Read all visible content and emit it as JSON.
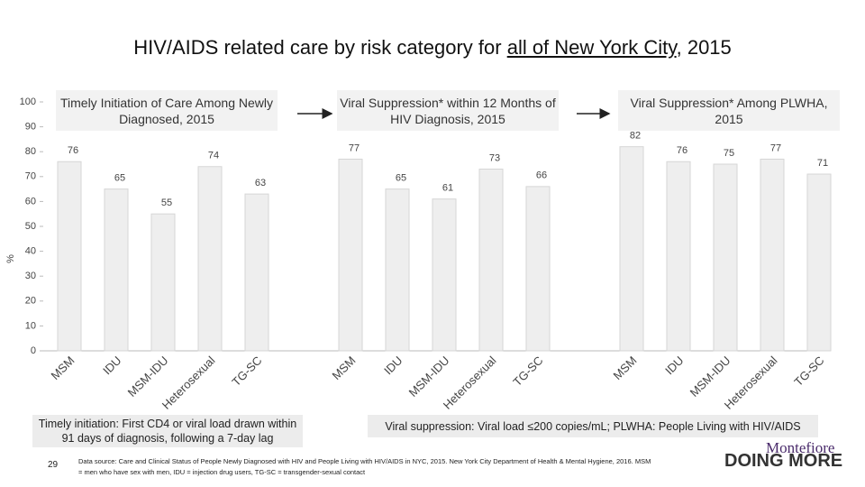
{
  "title_parts": [
    "HIV/AIDS related care by risk category for",
    "all of New York City",
    ", 2015"
  ],
  "chart_data": {
    "type": "bar",
    "ylabel": "%",
    "ylim": [
      0,
      100
    ],
    "yticks": [
      0,
      10,
      20,
      30,
      40,
      50,
      60,
      70,
      80,
      90,
      100
    ],
    "color": "#eeeeee",
    "groups": [
      {
        "title": "Timely Initiation of Care Among Newly Diagnosed, 2015",
        "categories": [
          "MSM",
          "IDU",
          "MSM-IDU",
          "Heterosexual",
          "TG-SC"
        ],
        "values": [
          76,
          65,
          55,
          74,
          63
        ]
      },
      {
        "title": "Viral Suppression* within 12 Months of HIV Diagnosis, 2015",
        "categories": [
          "MSM",
          "IDU",
          "MSM-IDU",
          "Heterosexual",
          "TG-SC"
        ],
        "values": [
          77,
          65,
          61,
          73,
          66
        ]
      },
      {
        "title": "Viral Suppression* Among PLWHA, 2015",
        "categories": [
          "MSM",
          "IDU",
          "MSM-IDU",
          "Heterosexual",
          "TG-SC"
        ],
        "values": [
          82,
          76,
          75,
          77,
          71
        ]
      }
    ]
  },
  "notes": {
    "left": "Timely initiation: First CD4 or viral load drawn within 91 days of diagnosis, following a 7-day lag",
    "right": "Viral suppression: Viral load ≤200 copies/mL; PLWHA: People Living with HIV/AIDS",
    "source": "Data source: Care and Clinical Status of People Newly Diagnosed with HIV and People Living with HIV/AIDS in NYC, 2015. New York City Department of Health & Mental Hygiene, 2016. MSM = men who have sex with men, IDU = injection drug users, TG-SC = transgender-sexual contact",
    "page": "29"
  },
  "logo": {
    "name": "Montefiore",
    "tagline": "DOING MORE"
  }
}
